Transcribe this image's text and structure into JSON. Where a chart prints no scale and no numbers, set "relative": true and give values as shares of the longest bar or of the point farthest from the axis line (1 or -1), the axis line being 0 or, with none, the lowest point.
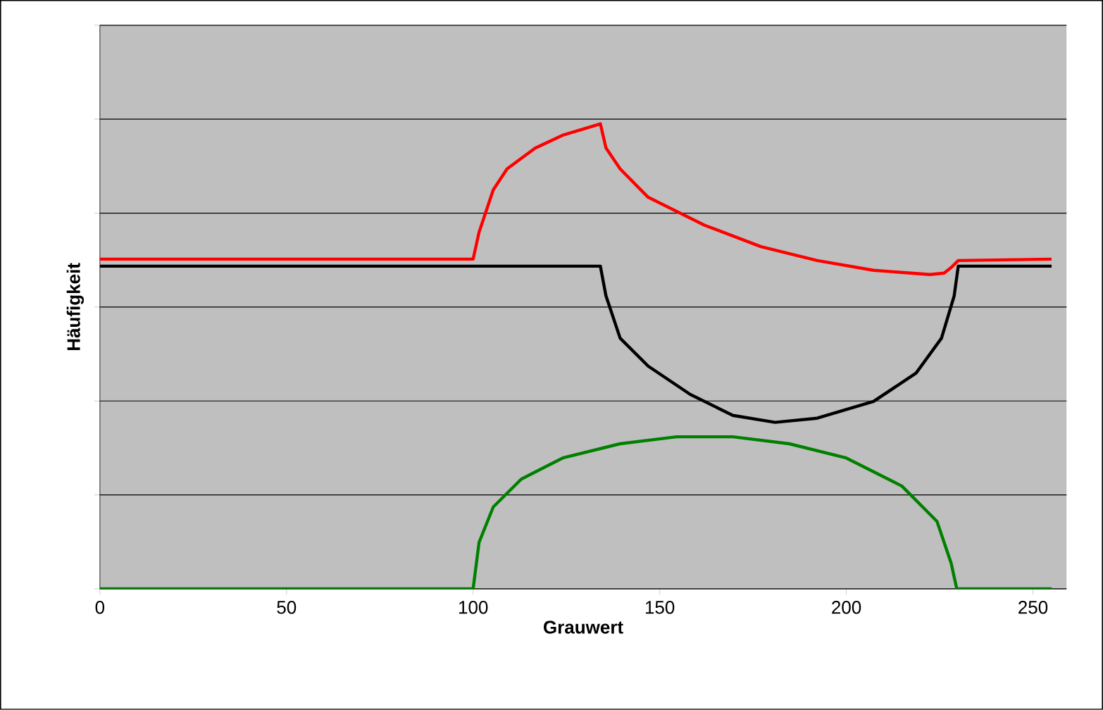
{
  "chart_data": {
    "type": "line",
    "xlabel": "Grauwert",
    "ylabel": "Häufigkeit",
    "relative": true,
    "grid": "y",
    "xlim": [
      0,
      259
    ],
    "xticks": [
      0,
      50,
      100,
      150,
      200,
      250
    ],
    "series": [
      {
        "color": "#ff0000",
        "x": [
          0,
          100,
          101.6,
          105.4,
          109.1,
          116.7,
          124.2,
          134.1,
          135.6,
          139.4,
          146.9,
          162.0,
          177.1,
          192.2,
          207.3,
          222.4,
          226.2,
          228.1,
          230.0,
          255
        ],
        "values": [
          0.709,
          0.709,
          0.767,
          0.858,
          0.903,
          0.948,
          0.976,
          1,
          0.948,
          0.903,
          0.842,
          0.782,
          0.736,
          0.706,
          0.685,
          0.676,
          0.679,
          0.691,
          0.706,
          0.709
        ]
      },
      {
        "color": "#000000",
        "x": [
          0,
          134.1,
          135.6,
          139.4,
          146.9,
          158.2,
          169.6,
          180.9,
          192.2,
          207.3,
          218.7,
          225.5,
          228.9,
          230.0,
          255
        ],
        "values": [
          0.694,
          0.694,
          0.63,
          0.539,
          0.479,
          0.418,
          0.373,
          0.358,
          0.367,
          0.403,
          0.464,
          0.539,
          0.63,
          0.694,
          0.694
        ]
      },
      {
        "color": "#008000",
        "x": [
          0,
          100,
          101.6,
          105.4,
          112.9,
          124.2,
          139.4,
          154.5,
          169.6,
          184.7,
          199.8,
          214.9,
          224.3,
          228.1,
          229.6,
          255
        ],
        "values": [
          0,
          0,
          0.1,
          0.176,
          0.236,
          0.282,
          0.312,
          0.327,
          0.327,
          0.312,
          0.282,
          0.221,
          0.145,
          0.055,
          0,
          0
        ]
      }
    ]
  }
}
